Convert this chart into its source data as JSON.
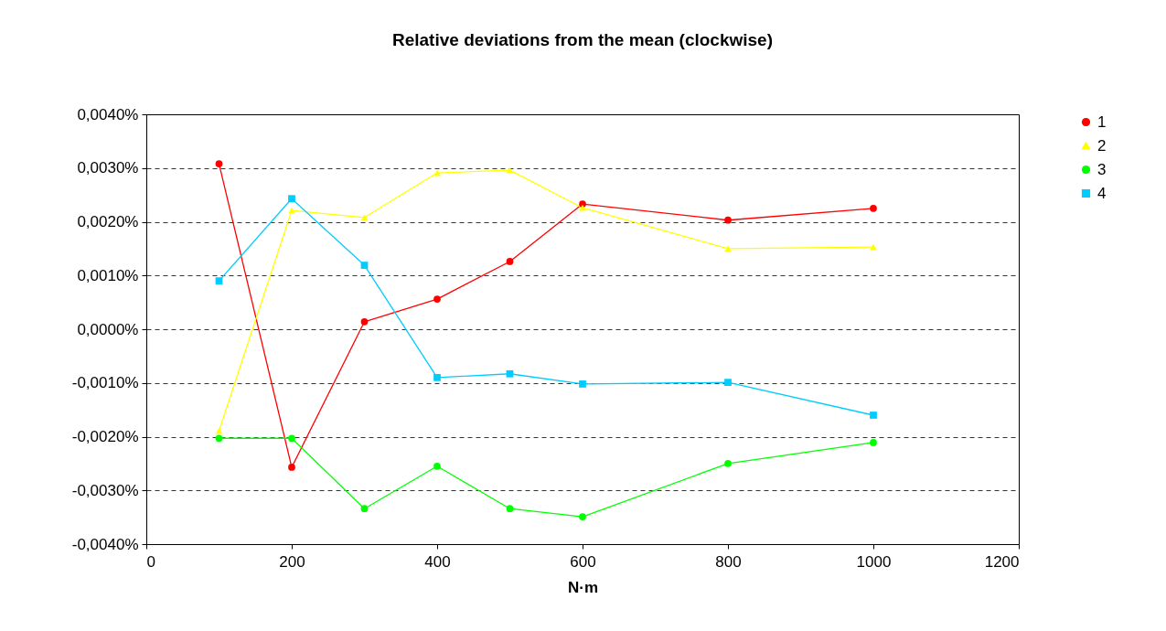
{
  "chart_data": {
    "type": "line",
    "title": "Relative deviations from the mean (clockwise)",
    "xlabel": "N·m",
    "x": [
      100,
      200,
      300,
      400,
      500,
      600,
      800,
      1000
    ],
    "series": [
      {
        "name": "1",
        "color": "#ff0000",
        "marker": "circle",
        "values": [
          0.00308,
          -0.00257,
          0.00014,
          0.00056,
          0.00126,
          0.00233,
          0.00203,
          0.00225
        ]
      },
      {
        "name": "2",
        "color": "#ffff00",
        "marker": "triangle",
        "values": [
          -0.00189,
          0.00221,
          0.00208,
          0.00291,
          0.00296,
          0.00226,
          0.0015,
          0.00153
        ]
      },
      {
        "name": "3",
        "color": "#00ff00",
        "marker": "circle",
        "values": [
          -0.00203,
          -0.00203,
          -0.00334,
          -0.00255,
          -0.00334,
          -0.00349,
          -0.0025,
          -0.00211
        ]
      },
      {
        "name": "4",
        "color": "#00ccff",
        "marker": "square",
        "values": [
          0.0009,
          0.00243,
          0.00119,
          -0.0009,
          -0.00083,
          -0.00102,
          -0.00099,
          -0.0016
        ]
      }
    ],
    "xlim": [
      0,
      1200
    ],
    "xticks": [
      0,
      200,
      400,
      600,
      800,
      1000,
      1200
    ],
    "ylim": [
      -0.004,
      0.004
    ],
    "yticks": [
      {
        "value": -0.004,
        "label": "-0,0040%"
      },
      {
        "value": -0.003,
        "label": "-0,0030%"
      },
      {
        "value": -0.002,
        "label": "-0,0020%"
      },
      {
        "value": -0.001,
        "label": "-0,0010%"
      },
      {
        "value": 0,
        "label": "0,0000%"
      },
      {
        "value": 0.001,
        "label": "0,0010%"
      },
      {
        "value": 0.002,
        "label": "0,0020%"
      },
      {
        "value": 0.003,
        "label": "0,0030%"
      },
      {
        "value": 0.004,
        "label": "0,0040%"
      }
    ],
    "grid": "y",
    "legend": "right",
    "line_style": "solid"
  }
}
